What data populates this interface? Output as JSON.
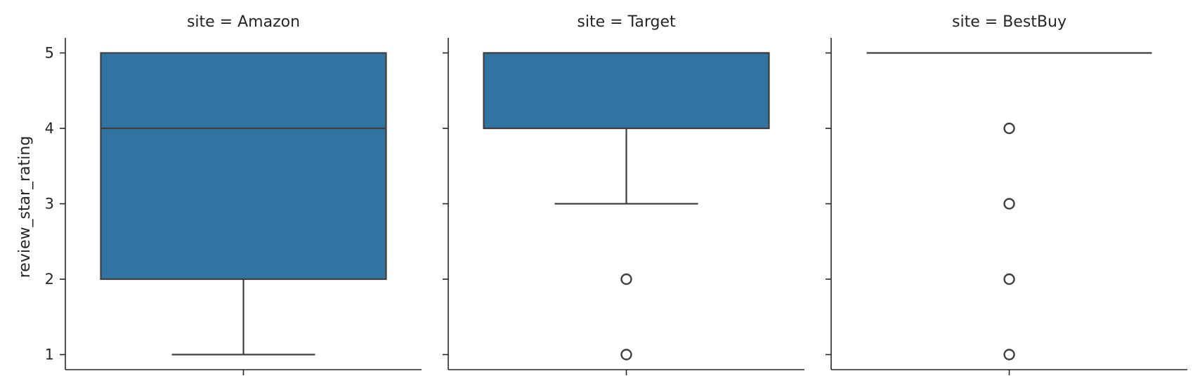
{
  "chart_data": {
    "type": "box",
    "ylabel": "review_star_rating",
    "ylim": [
      0.8,
      5.2
    ],
    "yticks": [
      1,
      2,
      3,
      4,
      5
    ],
    "box_color": "#3274a1",
    "line_color": "#3f3f3f",
    "facets": [
      {
        "title": "site = Amazon",
        "whisker_low": 1,
        "q1": 2,
        "median": 4,
        "q3": 5,
        "whisker_high": 5,
        "fliers": []
      },
      {
        "title": "site = Target",
        "whisker_low": 3,
        "q1": 4,
        "median": 5,
        "q3": 5,
        "whisker_high": 5,
        "fliers": [
          2,
          1
        ]
      },
      {
        "title": "site = BestBuy",
        "whisker_low": 5,
        "q1": 5,
        "median": 5,
        "q3": 5,
        "whisker_high": 5,
        "fliers": [
          4,
          3,
          2,
          1
        ]
      }
    ]
  }
}
